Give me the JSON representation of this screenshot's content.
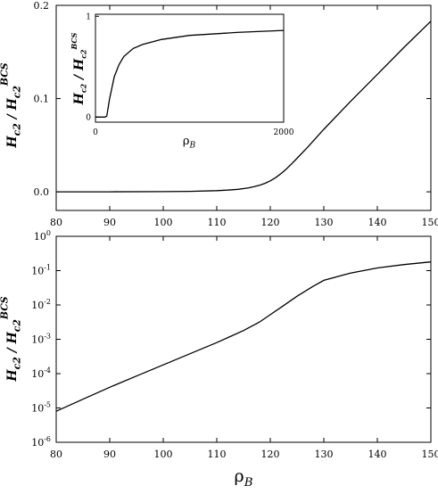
{
  "chart_data": [
    {
      "type": "line",
      "panel": "top",
      "ylabel": "H_c2 / H_c2^BCS",
      "xlabel": "",
      "xlim": [
        80,
        150
      ],
      "ylim": [
        -0.02,
        0.2
      ],
      "xticks": [
        "80",
        "90",
        "100",
        "110",
        "120",
        "130",
        "140",
        "150"
      ],
      "yticks": [
        "0.0",
        "0.1",
        "0.2"
      ],
      "series": [
        {
          "x": [
            80,
            90,
            100,
            105,
            110,
            112,
            114,
            115,
            116,
            117,
            118,
            119,
            120,
            121,
            122,
            123,
            124,
            125,
            127,
            130,
            135,
            140,
            145,
            150
          ],
          "y": [
            0.0,
            0.0,
            0.0002,
            0.0005,
            0.0012,
            0.0018,
            0.0027,
            0.0034,
            0.0043,
            0.0055,
            0.0071,
            0.0091,
            0.0118,
            0.0152,
            0.0195,
            0.0245,
            0.03,
            0.036,
            0.048,
            0.067,
            0.097,
            0.126,
            0.155,
            0.183
          ]
        }
      ]
    },
    {
      "type": "line",
      "panel": "inset",
      "ylabel": "H_c2 / H_c2^BCS",
      "xlabel": "ρB",
      "xlim": [
        0,
        2000
      ],
      "ylim": [
        -0.05,
        1.02
      ],
      "xticks": [
        "0",
        "2000"
      ],
      "yticks": [
        "0",
        "1"
      ],
      "series": [
        {
          "x": [
            0,
            80,
            100,
            120,
            150,
            200,
            250,
            300,
            400,
            500,
            700,
            1000,
            1500,
            2000
          ],
          "y": [
            0.0,
            0.0,
            0.0,
            0.01,
            0.18,
            0.4,
            0.52,
            0.6,
            0.68,
            0.72,
            0.77,
            0.81,
            0.84,
            0.86
          ]
        }
      ]
    },
    {
      "type": "line",
      "panel": "bottom",
      "scale_y": "log",
      "ylabel": "H_c2 / H_c2^BCS",
      "xlabel": "ρB",
      "xlim": [
        80,
        150
      ],
      "ylim": [
        1e-06,
        1
      ],
      "xticks": [
        "80",
        "90",
        "100",
        "110",
        "120",
        "130",
        "140",
        "150"
      ],
      "yticks": [
        {
          "base": "10",
          "exp": "0"
        },
        {
          "base": "10",
          "exp": "-1"
        },
        {
          "base": "10",
          "exp": "-2"
        },
        {
          "base": "10",
          "exp": "-3"
        },
        {
          "base": "10",
          "exp": "-4"
        },
        {
          "base": "10",
          "exp": "-5"
        },
        {
          "base": "10",
          "exp": "-6"
        }
      ],
      "series": [
        {
          "x": [
            80,
            85,
            90,
            95,
            100,
            105,
            110,
            115,
            118,
            120,
            122,
            125,
            128,
            130,
            135,
            140,
            145,
            150
          ],
          "y": [
            8e-06,
            1.8e-05,
            4e-05,
            8.5e-05,
            0.00018,
            0.00038,
            0.0008,
            0.0018,
            0.0032,
            0.0052,
            0.0085,
            0.018,
            0.035,
            0.052,
            0.085,
            0.12,
            0.15,
            0.18
          ]
        }
      ]
    }
  ]
}
